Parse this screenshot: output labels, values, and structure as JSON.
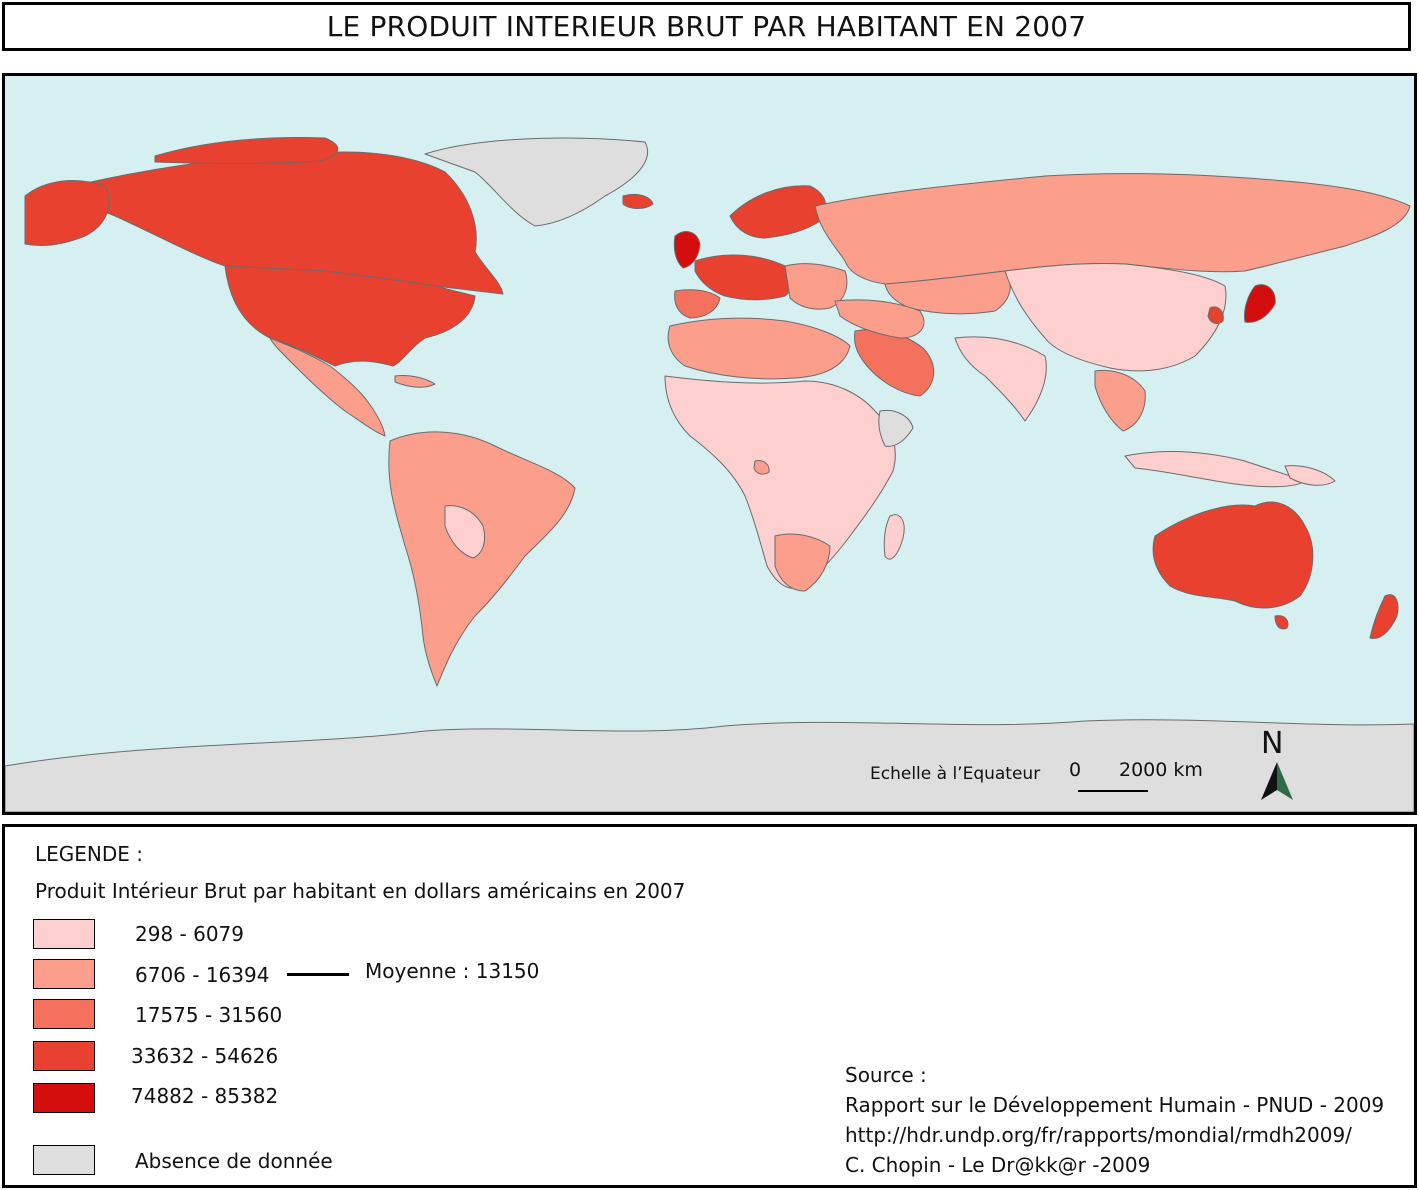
{
  "title": "LE PRODUIT INTERIEUR BRUT PAR HABITANT EN 2007",
  "map": {
    "scale_label": "Echelle à l’Equateur",
    "scale_zero": "0",
    "scale_distance": "2000 km",
    "north_label": "N",
    "colors": {
      "ocean": "#d6eff1",
      "border": "#6b6b6b",
      "no_data": "#dedede",
      "class_1": "#fdcfcf",
      "class_2": "#fc9e8c",
      "class_3": "#f4725d",
      "class_4": "#e8412f",
      "class_5": "#d40d0d"
    }
  },
  "legend": {
    "heading": "LEGENDE :",
    "subtitle": "Produit Intérieur Brut par habitant en dollars américains en 2007",
    "classes": [
      {
        "label": "298 - 6079",
        "color": "#fdcfcf"
      },
      {
        "label": "6706 - 16394",
        "color": "#fc9e8c"
      },
      {
        "label": "17575 - 31560",
        "color": "#f4725d"
      },
      {
        "label": "33632 - 54626",
        "color": "#e8412f"
      },
      {
        "label": "74882 - 85382",
        "color": "#d40d0d"
      }
    ],
    "no_data": {
      "label": "Absence de donnée",
      "color": "#dedede"
    },
    "mean_label": "Moyenne : 13150"
  },
  "source": {
    "heading": "Source :",
    "line1": "Rapport sur le Développement Humain - PNUD - 2009",
    "line2": "http://hdr.undp.org/fr/rapports/mondial/rmdh2009/",
    "line3": "C. Chopin - Le Dr@kk@r -2009"
  }
}
